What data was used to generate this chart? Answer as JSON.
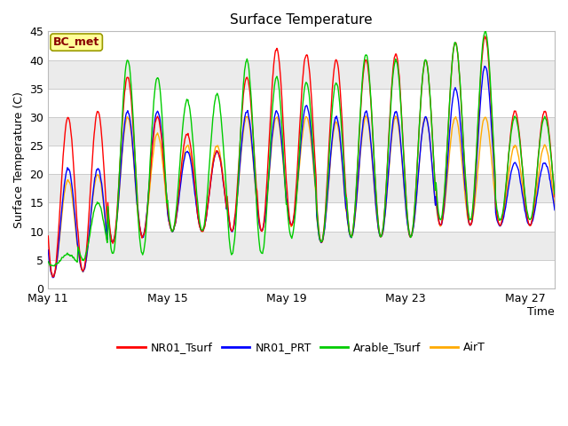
{
  "title": "Surface Temperature",
  "ylabel": "Surface Temperature (C)",
  "xlabel": "Time",
  "ylim": [
    0,
    45
  ],
  "annotation": "BC_met",
  "x_tick_labels": [
    "May 11",
    "May 15",
    "May 19",
    "May 23",
    "May 27"
  ],
  "x_tick_positions": [
    0,
    4,
    8,
    12,
    16
  ],
  "legend_labels": [
    "NR01_Tsurf",
    "NR01_PRT",
    "Arable_Tsurf",
    "AirT"
  ],
  "line_colors": [
    "#ff0000",
    "#0000ff",
    "#00cc00",
    "#ffaa00"
  ],
  "bg_color": "#ffffff",
  "plot_bg": "#ffffff",
  "band_color": "#ebebeb",
  "band_ranges": [
    [
      35,
      40
    ],
    [
      25,
      30
    ],
    [
      15,
      20
    ],
    [
      5,
      10
    ]
  ],
  "n_days": 17,
  "points_per_day": 48,
  "figsize": [
    6.4,
    4.8
  ],
  "dpi": 100
}
